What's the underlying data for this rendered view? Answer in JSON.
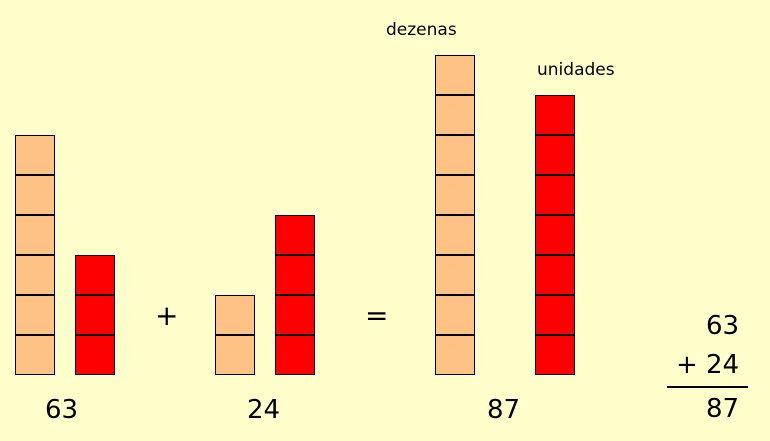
{
  "colors": {
    "background": "#FFFFCC",
    "tens_block": "#FFC285",
    "units_block": "#FF0000",
    "outline": "#000000"
  },
  "labels": {
    "tens": "dezenas",
    "units": "unidades"
  },
  "groups": [
    {
      "id": "first-addend",
      "tens": 6,
      "units": 3,
      "caption": "63"
    },
    {
      "id": "second-addend",
      "tens": 2,
      "units": 4,
      "caption": "24"
    },
    {
      "id": "sum",
      "tens": 8,
      "units": 7,
      "caption": "87"
    }
  ],
  "operators": {
    "plus": "+",
    "equals": "="
  },
  "column_sum": {
    "top": "63",
    "operator": "+",
    "second": "24",
    "result": "87"
  }
}
